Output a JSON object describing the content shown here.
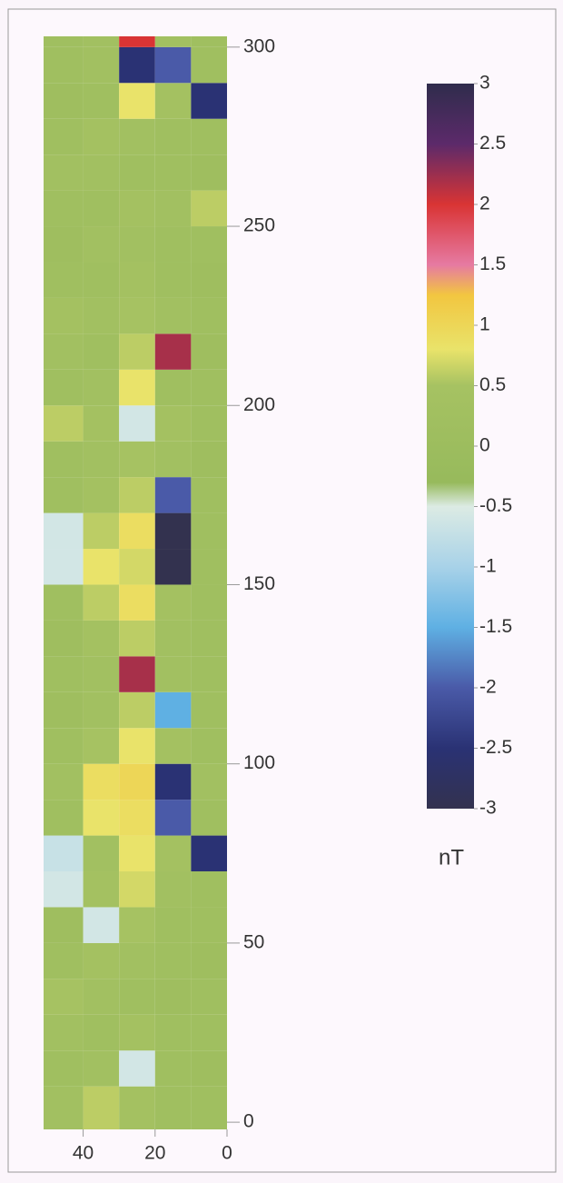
{
  "chart_data": {
    "type": "heatmap",
    "colorbar_label": "nT",
    "xlim": [
      51,
      0
    ],
    "xticks": [
      40,
      20,
      0
    ],
    "ylim": [
      -2,
      303
    ],
    "yticks": [
      0,
      50,
      100,
      150,
      200,
      250,
      300
    ],
    "xbins": [
      51,
      40,
      30,
      20,
      10,
      0
    ],
    "ybins": [
      -2,
      10,
      20,
      30,
      40,
      50,
      60,
      70,
      80,
      90,
      100,
      110,
      120,
      130,
      140,
      150,
      160,
      170,
      180,
      190,
      200,
      210,
      220,
      230,
      240,
      250,
      260,
      270,
      280,
      290,
      300,
      303
    ],
    "z": [
      [
        0.3,
        0.6,
        0.4,
        0.2,
        0.2
      ],
      [
        0.2,
        0.3,
        -0.6,
        0.2,
        0.1
      ],
      [
        0.3,
        0.2,
        0.4,
        0.2,
        0.2
      ],
      [
        0.5,
        0.3,
        0.2,
        0.1,
        0.2
      ],
      [
        0.2,
        0.4,
        0.3,
        0.2,
        0.1
      ],
      [
        0.1,
        -0.6,
        0.5,
        0.2,
        0.2
      ],
      [
        -0.6,
        0.4,
        0.7,
        0.3,
        0.2
      ],
      [
        -0.7,
        0.3,
        0.8,
        0.4,
        -2.5
      ],
      [
        0.2,
        0.8,
        0.9,
        -2.0,
        0.2
      ],
      [
        0.3,
        0.9,
        1.0,
        -2.5,
        0.3
      ],
      [
        0.2,
        0.5,
        0.8,
        0.4,
        0.2
      ],
      [
        0.1,
        0.3,
        0.6,
        -1.5,
        0.2
      ],
      [
        0.2,
        0.3,
        2.2,
        0.3,
        0.2
      ],
      [
        0.1,
        0.4,
        0.6,
        0.3,
        0.2
      ],
      [
        0.2,
        0.6,
        0.9,
        0.4,
        0.2
      ],
      [
        -0.6,
        0.8,
        0.7,
        -3.0,
        0.2
      ],
      [
        -0.6,
        0.6,
        0.9,
        -3.0,
        0.2
      ],
      [
        0.2,
        0.4,
        0.6,
        -2.0,
        0.2
      ],
      [
        0.2,
        0.3,
        0.5,
        0.3,
        0.1
      ],
      [
        0.6,
        0.4,
        -0.6,
        0.4,
        0.2
      ],
      [
        0.2,
        0.3,
        0.8,
        0.2,
        0.2
      ],
      [
        0.3,
        0.2,
        0.6,
        2.2,
        0.1
      ],
      [
        0.4,
        0.3,
        0.5,
        0.3,
        0.2
      ],
      [
        0.2,
        0.2,
        0.4,
        0.2,
        0.1
      ],
      [
        0.1,
        0.3,
        0.3,
        0.2,
        0.2
      ],
      [
        0.2,
        0.2,
        0.4,
        0.3,
        0.6
      ],
      [
        0.3,
        0.3,
        0.2,
        0.2,
        0.1
      ],
      [
        0.2,
        0.4,
        0.3,
        0.2,
        0.2
      ],
      [
        0.1,
        0.2,
        0.8,
        0.4,
        -2.5
      ],
      [
        0.2,
        0.3,
        -2.5,
        -2.0,
        0.2
      ],
      [
        0.2,
        0.3,
        2.0,
        0.3,
        0.2
      ]
    ],
    "colorscale": [
      {
        "value": -3,
        "color": "#33324f"
      },
      {
        "value": -2.5,
        "color": "#2a3274"
      },
      {
        "value": -2,
        "color": "#4a5aa8"
      },
      {
        "value": -1.5,
        "color": "#5fb0e3"
      },
      {
        "value": -1,
        "color": "#a8d2e8"
      },
      {
        "value": -0.5,
        "color": "#dcebe4"
      },
      {
        "value": -0.3,
        "color": "#97ba5c"
      },
      {
        "value": 0.5,
        "color": "#a6c262"
      },
      {
        "value": 0.8,
        "color": "#e9e36a"
      },
      {
        "value": 1.25,
        "color": "#f2c640"
      },
      {
        "value": 1.5,
        "color": "#e67aa2"
      },
      {
        "value": 2,
        "color": "#d93434"
      },
      {
        "value": 2.5,
        "color": "#5c2a6a"
      },
      {
        "value": 3,
        "color": "#2f2c4c"
      }
    ],
    "cticks": [
      3,
      2.5,
      2,
      1.5,
      1,
      0.5,
      0,
      -0.5,
      -1,
      -1.5,
      -2,
      -2.5,
      -3
    ]
  }
}
